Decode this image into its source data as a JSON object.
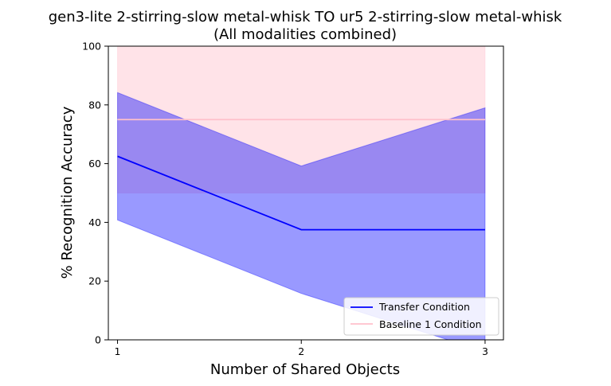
{
  "chart_data": {
    "type": "line",
    "title": "gen3-lite 2-stirring-slow metal-whisk TO ur5 2-stirring-slow metal-whisk",
    "subtitle": "(All modalities combined)",
    "xlabel": "Number of Shared Objects",
    "ylabel": "% Recognition Accuracy",
    "x": [
      1,
      2,
      3
    ],
    "x_ticks": [
      "1",
      "2",
      "3"
    ],
    "xlim": [
      0.95,
      3.1
    ],
    "ylim": [
      0,
      100
    ],
    "y_ticks": [
      "0",
      "20",
      "40",
      "60",
      "80",
      "100"
    ],
    "grid": false,
    "legend_position": "lower-right",
    "series": [
      {
        "name": "Transfer Condition",
        "color": "#0000ff",
        "values": [
          62.5,
          37.5,
          37.5
        ],
        "band_lower": [
          40.8,
          15.8,
          -4.0
        ],
        "band_upper": [
          84.2,
          59.2,
          79.0
        ],
        "band_color": "#0000ff",
        "band_opacity": 0.4
      },
      {
        "name": "Baseline 1 Condition",
        "color": "#ffc0cb",
        "values": [
          75,
          75,
          75
        ],
        "band_lower": [
          50,
          50,
          50
        ],
        "band_upper": [
          100,
          100,
          100
        ],
        "band_color": "#ffc0cb",
        "band_opacity": 0.45
      }
    ]
  }
}
